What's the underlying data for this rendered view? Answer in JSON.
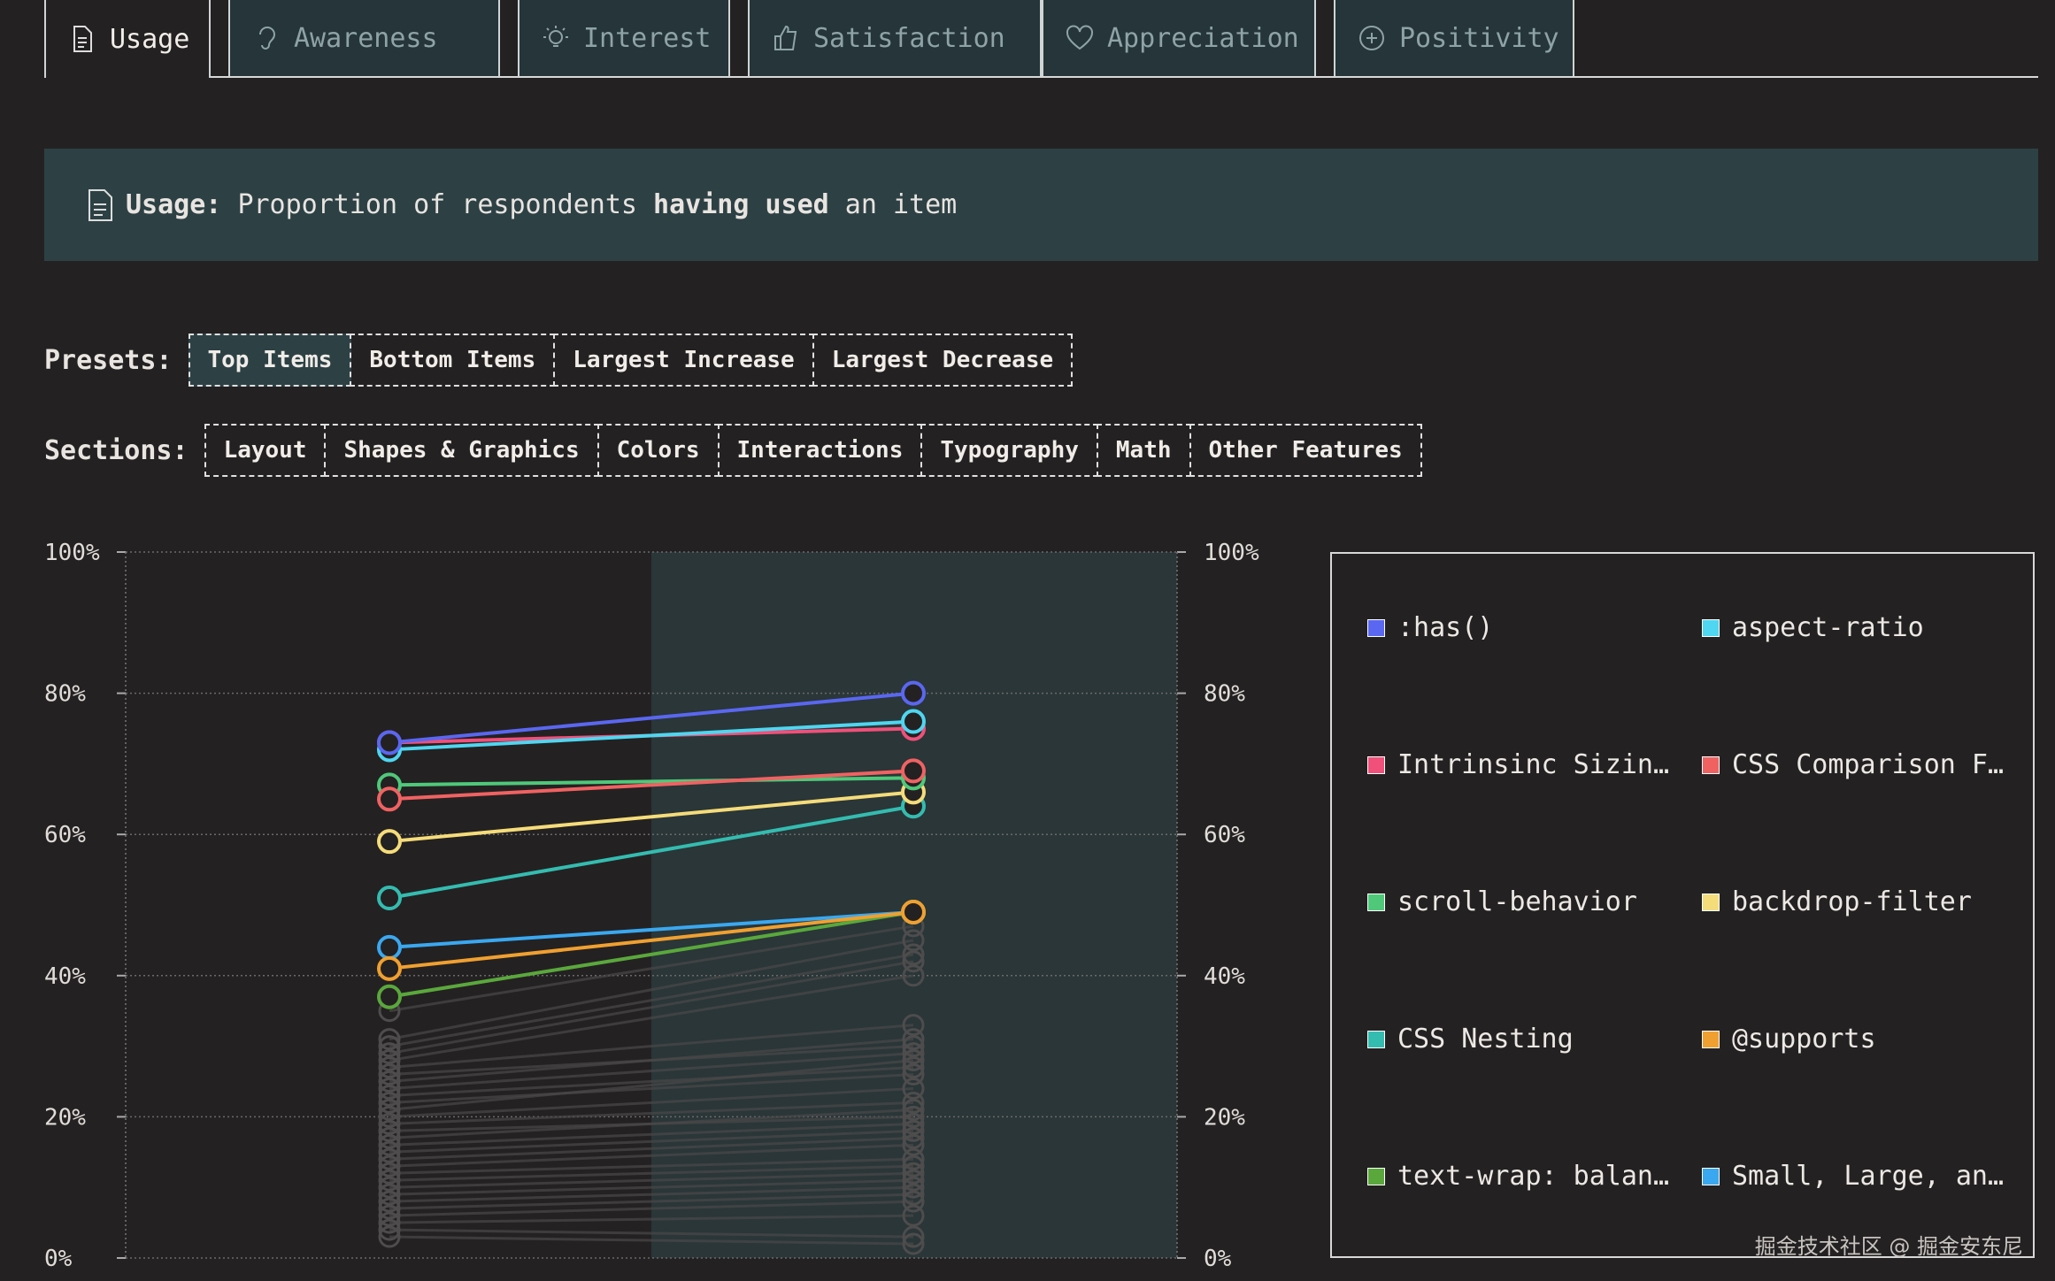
{
  "tabs": [
    {
      "label": "Usage",
      "icon": "document-icon",
      "active": true
    },
    {
      "label": "Awareness",
      "icon": "ear-icon",
      "active": false
    },
    {
      "label": "Interest",
      "icon": "lightbulb-icon",
      "active": false
    },
    {
      "label": "Satisfaction",
      "icon": "thumbs-up-icon",
      "active": false
    },
    {
      "label": "Appreciation",
      "icon": "heart-icon",
      "active": false
    },
    {
      "label": "Positivity",
      "icon": "plus-circle-icon",
      "active": false
    }
  ],
  "banner": {
    "term": "Usage:",
    "text1": "Proportion of respondents",
    "bold": "having used",
    "text2": "an item"
  },
  "presets": {
    "label": "Presets:",
    "items": [
      "Top Items",
      "Bottom Items",
      "Largest Increase",
      "Largest Decrease"
    ],
    "active": 0
  },
  "sections": {
    "label": "Sections:",
    "items": [
      "Layout",
      "Shapes & Graphics",
      "Colors",
      "Interactions",
      "Typography",
      "Math",
      "Other Features"
    ]
  },
  "chart_data": {
    "type": "line",
    "ylim": [
      0,
      100
    ],
    "yticks": [
      "0%",
      "20%",
      "40%",
      "60%",
      "80%",
      "100%"
    ],
    "grid": true,
    "legend_position": "right",
    "series": [
      {
        "name": ":has()",
        "color": "#5a67f0",
        "values": [
          73,
          80
        ]
      },
      {
        "name": "aspect-ratio",
        "color": "#4fd6f0",
        "values": [
          72,
          76
        ]
      },
      {
        "name": "Intrinsinc Sizin…",
        "color": "#f0507a",
        "values": [
          73,
          75
        ]
      },
      {
        "name": "CSS Comparison F…",
        "color": "#f06262",
        "values": [
          65,
          69
        ]
      },
      {
        "name": "scroll-behavior",
        "color": "#4fc87a",
        "values": [
          67,
          68
        ]
      },
      {
        "name": "backdrop-filter",
        "color": "#f5dc7a",
        "values": [
          59,
          66
        ]
      },
      {
        "name": "CSS Nesting",
        "color": "#34bcb0",
        "values": [
          51,
          64
        ]
      },
      {
        "name": "@supports",
        "color": "#f0a030",
        "values": [
          41,
          49
        ]
      },
      {
        "name": "text-wrap: balan…",
        "color": "#5aa83c",
        "values": [
          37,
          49
        ]
      },
      {
        "name": "Small, Large, an…",
        "color": "#3aa8f0",
        "values": [
          44,
          49
        ]
      }
    ],
    "background_series": [
      [
        35,
        47
      ],
      [
        31,
        45
      ],
      [
        30,
        43
      ],
      [
        29,
        42
      ],
      [
        28,
        40
      ],
      [
        27,
        33
      ],
      [
        26,
        30
      ],
      [
        25,
        31
      ],
      [
        24,
        29
      ],
      [
        23,
        27
      ],
      [
        22,
        26
      ],
      [
        21,
        28
      ],
      [
        20,
        24
      ],
      [
        19,
        22
      ],
      [
        18,
        20
      ],
      [
        17,
        21
      ],
      [
        16,
        19
      ],
      [
        15,
        18
      ],
      [
        14,
        17
      ],
      [
        13,
        16
      ],
      [
        12,
        14
      ],
      [
        11,
        13
      ],
      [
        10,
        12
      ],
      [
        9,
        11
      ],
      [
        8,
        10
      ],
      [
        7,
        9
      ],
      [
        6,
        8
      ],
      [
        5,
        6
      ],
      [
        4,
        3
      ],
      [
        3,
        2
      ]
    ]
  },
  "watermark": "掘金技术社区 @ 掘金安东尼",
  "colors": {
    "bg": "#242122",
    "panel": "#2d4145",
    "tab_bg": "#253539"
  }
}
